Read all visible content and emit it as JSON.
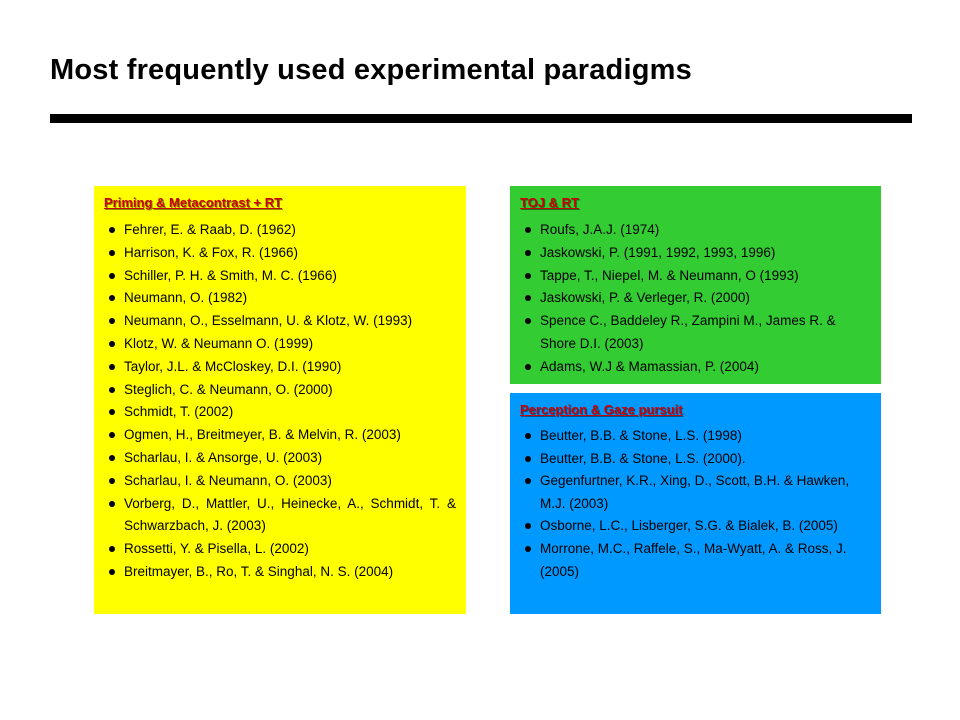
{
  "page": {
    "title": "Most frequently used experimental paradigms"
  },
  "colors": {
    "priming_box": "#ffff00",
    "toj_box": "#33cc33",
    "gaze_box": "#0099ff",
    "heading_red": "#cc0000"
  },
  "boxes": {
    "priming": {
      "heading": "Priming & Metacontrast + RT",
      "items": [
        "Fehrer, E. & Raab, D. (1962)",
        "Harrison, K. & Fox, R. (1966)",
        "Schiller, P. H. & Smith, M. C. (1966)",
        "Neumann, O. (1982)",
        "Neumann, O., Esselmann, U. & Klotz, W. (1993)",
        "Klotz, W. & Neumann O. (1999)",
        "Taylor, J.L. & McCloskey, D.I. (1990)",
        "Steglich, C. & Neumann, O. (2000)",
        "Schmidt, T. (2002)",
        "Ogmen, H., Breitmeyer, B. & Melvin, R. (2003)",
        "Scharlau, I. & Ansorge, U. (2003)",
        "Scharlau, I. & Neumann, O. (2003)",
        "Vorberg, D., Mattler, U., Heinecke, A., Schmidt, T. & Schwarzbach, J. (2003)",
        "Rossetti, Y. & Pisella, L. (2002)",
        "Breitmayer, B., Ro, T. & Singhal, N. S. (2004)"
      ]
    },
    "toj": {
      "heading": "TOJ & RT",
      "items": [
        "Roufs, J.A.J. (1974)",
        "Jaskowski, P. (1991, 1992, 1993, 1996)",
        "Tappe, T., Niepel, M. & Neumann, O (1993)",
        "Jaskowski, P. & Verleger, R. (2000)",
        "Spence C., Baddeley R., Zampini M., James R. & Shore D.I. (2003)",
        "Adams, W.J & Mamassian, P. (2004)"
      ]
    },
    "gaze": {
      "heading": "Perception & Gaze pursuit",
      "items": [
        "Beutter, B.B. & Stone, L.S. (1998)",
        "Beutter, B.B. & Stone, L.S. (2000).",
        "Gegenfurtner, K.R., Xing, D., Scott, B.H. & Hawken, M.J. (2003)",
        "Osborne, L.C., Lisberger, S.G. & Bialek, B. (2005)",
        "Morrone, M.C., Raffele, S., Ma-Wyatt, A. & Ross, J. (2005)"
      ]
    }
  }
}
